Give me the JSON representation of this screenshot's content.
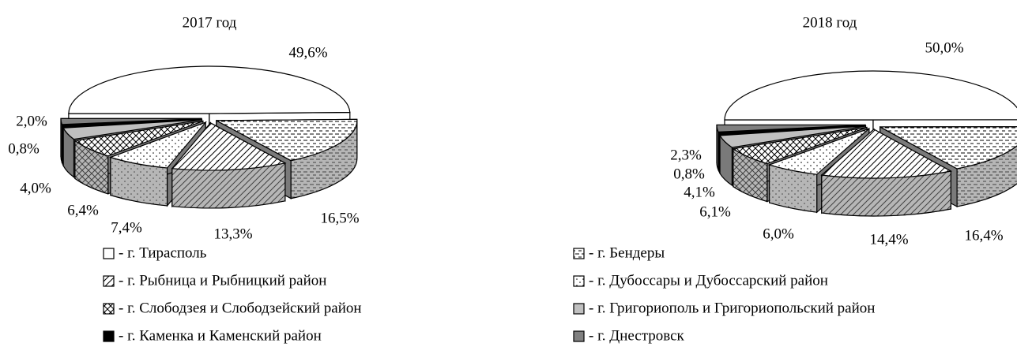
{
  "chart_data": [
    {
      "type": "pie",
      "title": "2017 год",
      "values": [
        49.6,
        16.5,
        13.3,
        7.4,
        6.4,
        4.0,
        0.8,
        2.0
      ],
      "value_labels": [
        "49,6%",
        "16,5%",
        "13,3%",
        "7,4%",
        "6,4%",
        "4,0%",
        "0,8%",
        "2,0%"
      ]
    },
    {
      "type": "pie",
      "title": "2018 год",
      "values": [
        50.0,
        16.4,
        14.4,
        6.0,
        6.1,
        4.1,
        0.8,
        2.3
      ],
      "value_labels": [
        "50,0%",
        "16,4%",
        "14,4%",
        "6,0%",
        "6,1%",
        "4,1%",
        "0,8%",
        "2,3%"
      ]
    }
  ],
  "legend": [
    {
      "label": "- г. Тирасполь",
      "color": "#ffffff",
      "pattern": "none"
    },
    {
      "label": "- г. Бендеры",
      "color": "#ffffff",
      "pattern": "dash"
    },
    {
      "label": "- г. Рыбница и Рыбницкий район",
      "color": "#ffffff",
      "pattern": "diag"
    },
    {
      "label": "- г. Дубоссары и Дубоссарский район",
      "color": "#ffffff",
      "pattern": "dot"
    },
    {
      "label": "- г. Слободзея и Слободзейский район",
      "color": "#ffffff",
      "pattern": "cross"
    },
    {
      "label": "- г. Григориополь и Григориопольский район",
      "color": "#c0c0c0",
      "pattern": "none"
    },
    {
      "label": "- г. Каменка и Каменский район",
      "color": "#000000",
      "pattern": "none"
    },
    {
      "label": "- г. Днестровск",
      "color": "#808080",
      "pattern": "none"
    }
  ]
}
